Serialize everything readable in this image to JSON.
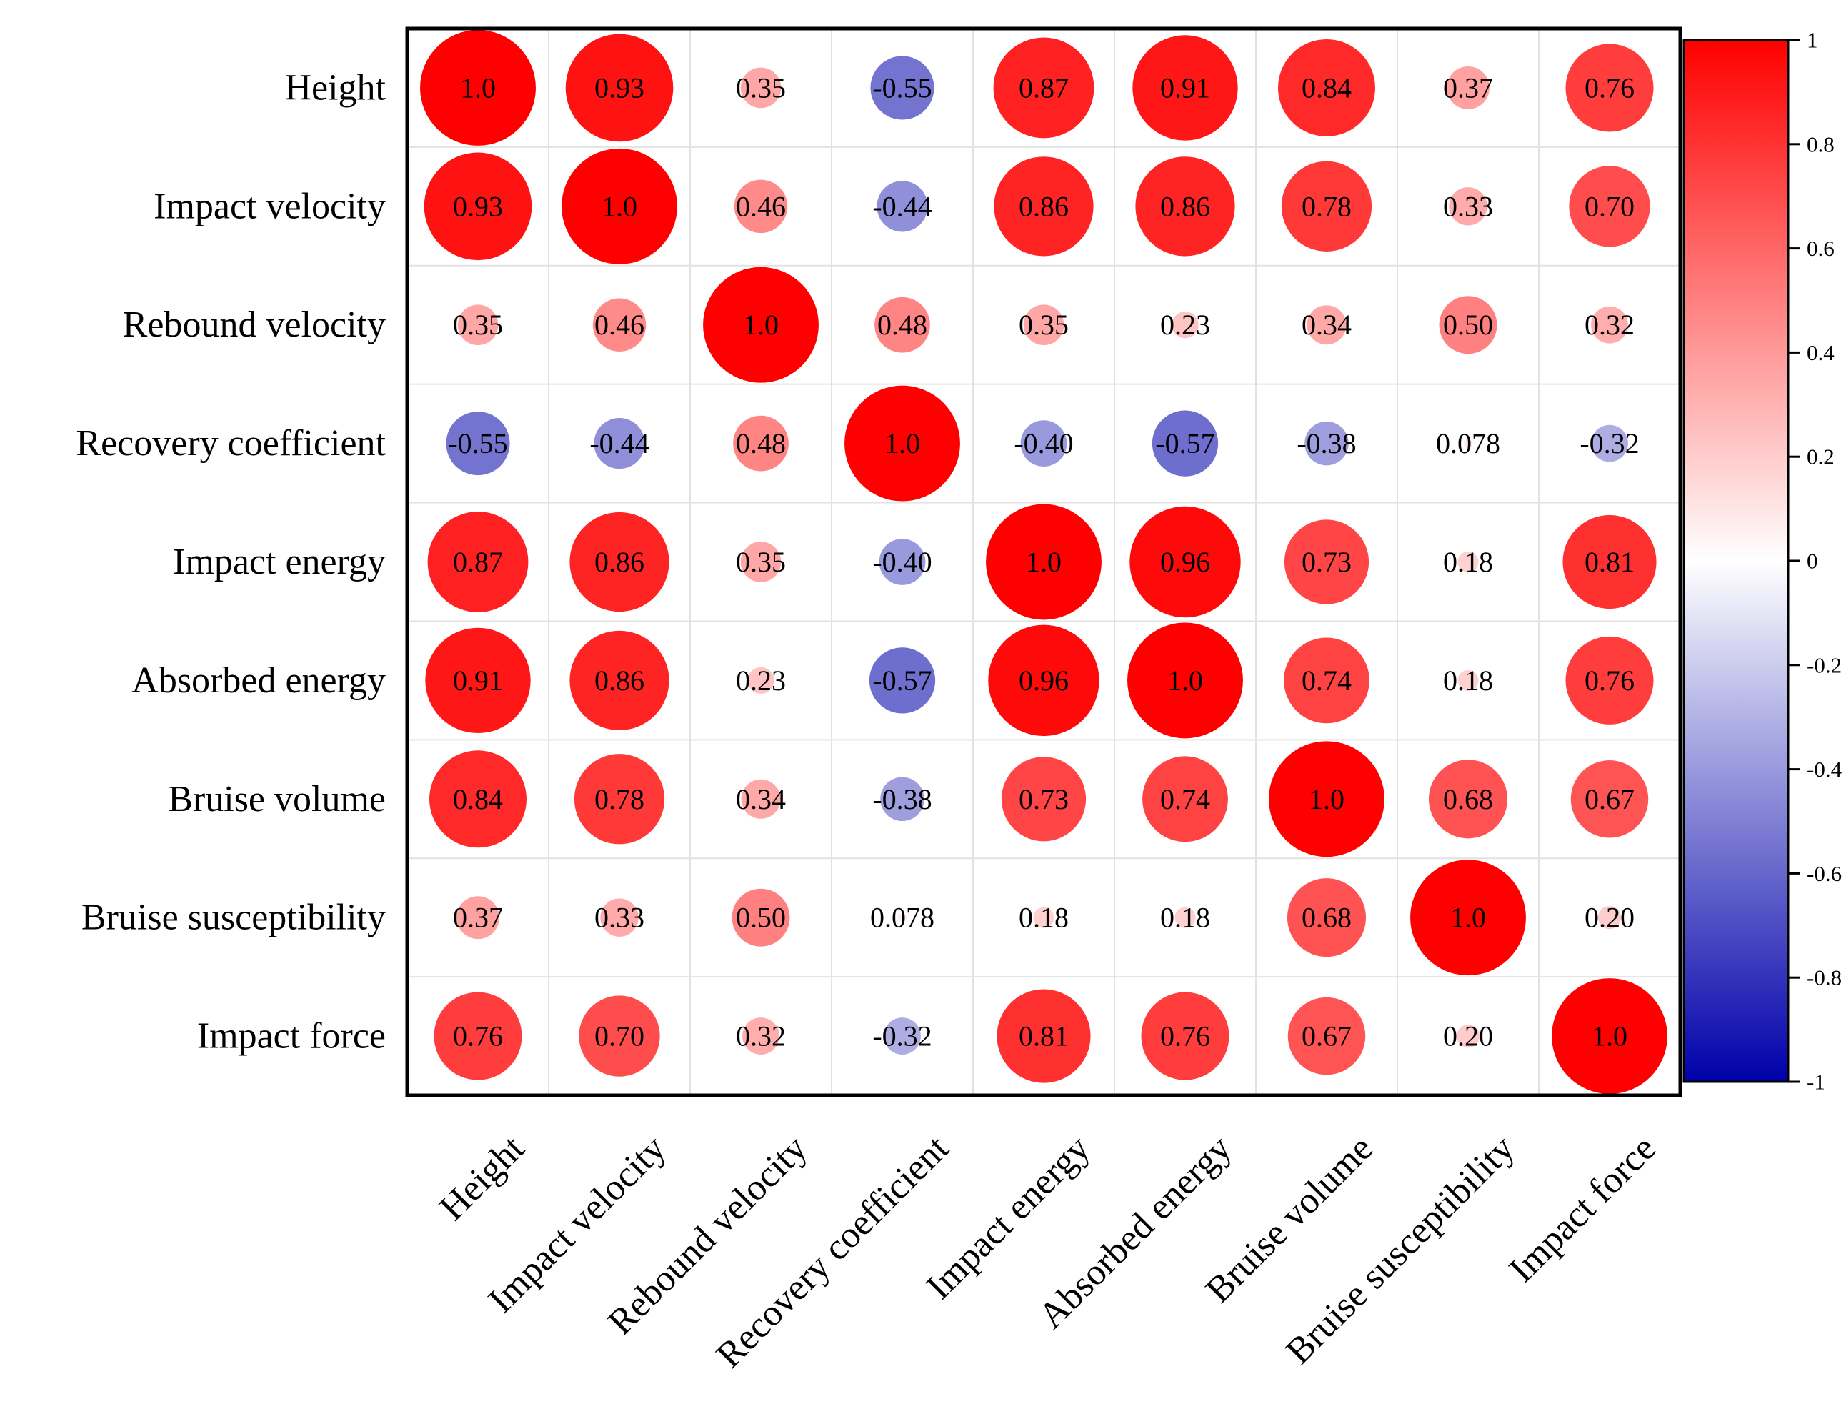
{
  "chart_data": {
    "type": "heatmap",
    "subtype": "correlation-circle-matrix",
    "variables": [
      "Height",
      "Impact velocity",
      "Rebound velocity",
      "Recovery coefficient",
      "Impact energy",
      "Absorbed energy",
      "Bruise volume",
      "Bruise susceptibility",
      "Impact force"
    ],
    "cells": [
      [
        "1.0",
        "0.93",
        "0.35",
        "-0.55",
        "0.87",
        "0.91",
        "0.84",
        "0.37",
        "0.76"
      ],
      [
        "0.93",
        "1.0",
        "0.46",
        "-0.44",
        "0.86",
        "0.86",
        "0.78",
        "0.33",
        "0.70"
      ],
      [
        "0.35",
        "0.46",
        "1.0",
        "0.48",
        "0.35",
        "0.23",
        "0.34",
        "0.50",
        "0.32"
      ],
      [
        "-0.55",
        "-0.44",
        "0.48",
        "1.0",
        "-0.40",
        "-0.57",
        "-0.38",
        "0.078",
        "-0.32"
      ],
      [
        "0.87",
        "0.86",
        "0.35",
        "-0.40",
        "1.0",
        "0.96",
        "0.73",
        "0.18",
        "0.81"
      ],
      [
        "0.91",
        "0.86",
        "0.23",
        "-0.57",
        "0.96",
        "1.0",
        "0.74",
        "0.18",
        "0.76"
      ],
      [
        "0.84",
        "0.78",
        "0.34",
        "-0.38",
        "0.73",
        "0.74",
        "1.0",
        "0.68",
        "0.67"
      ],
      [
        "0.37",
        "0.33",
        "0.50",
        "0.078",
        "0.18",
        "0.18",
        "0.68",
        "1.0",
        "0.20"
      ],
      [
        "0.76",
        "0.70",
        "0.32",
        "-0.32",
        "0.81",
        "0.76",
        "0.67",
        "0.20",
        "1.0"
      ]
    ],
    "colorbar": {
      "range": [
        -1,
        1
      ],
      "ticks": [
        "1",
        "0.8",
        "0.6",
        "0.4",
        "0.2",
        "0",
        "-0.2",
        "-0.4",
        "-0.6",
        "-0.8",
        "-1"
      ],
      "colors": {
        "positive": "#ff0000",
        "zero": "#ffffff",
        "negative": "#0000aa"
      }
    },
    "grid": true,
    "legend_position": "right"
  }
}
